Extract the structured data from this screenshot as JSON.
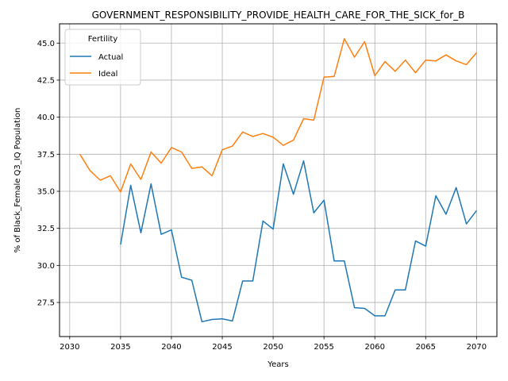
{
  "chart_data": {
    "type": "line",
    "title": "GOVERNMENT_RESPONSIBILITY_PROVIDE_HEALTH_CARE_FOR_THE_SICK_for_B",
    "xlabel": "Years",
    "ylabel": "% of Black_Female Q3_IQ Population",
    "xlim": [
      2029,
      2072
    ],
    "ylim": [
      25.2,
      46.3
    ],
    "xticks": [
      2030,
      2035,
      2040,
      2045,
      2050,
      2055,
      2060,
      2065,
      2070
    ],
    "yticks": [
      27.5,
      30.0,
      32.5,
      35.0,
      37.5,
      40.0,
      42.5,
      45.0
    ],
    "grid": true,
    "legend": {
      "title": "Fertility",
      "placement": "top-left"
    },
    "colors": {
      "Actual": "#1f77b4",
      "Ideal": "#ff7f0e"
    },
    "series": [
      {
        "name": "Actual",
        "x": [
          2035,
          2036,
          2037,
          2038,
          2039,
          2040,
          2041,
          2042,
          2043,
          2044,
          2045,
          2046,
          2047,
          2048,
          2049,
          2050,
          2051,
          2052,
          2053,
          2054,
          2055,
          2056,
          2057,
          2058,
          2059,
          2060,
          2061,
          2062,
          2063,
          2064,
          2065,
          2066,
          2067,
          2068,
          2069,
          2070
        ],
        "values": [
          31.4,
          35.4,
          32.2,
          35.5,
          32.1,
          32.4,
          29.2,
          29.0,
          26.2,
          26.35,
          26.4,
          26.25,
          28.95,
          28.95,
          33.0,
          32.45,
          36.85,
          34.8,
          37.05,
          33.55,
          34.4,
          30.3,
          30.3,
          27.15,
          27.1,
          26.6,
          26.6,
          28.35,
          28.35,
          31.65,
          31.3,
          34.7,
          33.45,
          35.25,
          32.8,
          33.7
        ]
      },
      {
        "name": "Ideal",
        "x": [
          2031,
          2032,
          2033,
          2034,
          2035,
          2036,
          2037,
          2038,
          2039,
          2040,
          2041,
          2042,
          2043,
          2044,
          2045,
          2046,
          2047,
          2048,
          2049,
          2050,
          2051,
          2052,
          2053,
          2054,
          2055,
          2056,
          2057,
          2058,
          2059,
          2060,
          2061,
          2062,
          2063,
          2064,
          2065,
          2066,
          2067,
          2068,
          2069,
          2070
        ],
        "values": [
          37.5,
          36.4,
          35.75,
          36.05,
          34.95,
          36.85,
          35.8,
          37.65,
          36.9,
          37.95,
          37.65,
          36.55,
          36.65,
          36.05,
          37.8,
          38.05,
          39.0,
          38.7,
          38.9,
          38.65,
          38.1,
          38.45,
          39.9,
          39.8,
          42.7,
          42.75,
          45.3,
          44.05,
          45.1,
          42.8,
          43.75,
          43.1,
          43.85,
          43.0,
          43.85,
          43.8,
          44.2,
          43.8,
          43.55,
          44.35
        ]
      }
    ]
  }
}
